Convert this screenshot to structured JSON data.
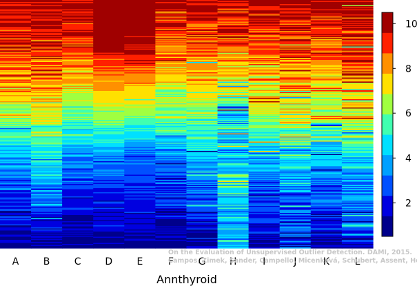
{
  "chart_data": {
    "type": "heatmap",
    "title": "",
    "xlabel": "Annthyroid",
    "ylabel": "",
    "categories": [
      "A",
      "B",
      "C",
      "D",
      "E",
      "F",
      "G",
      "H",
      "I",
      "J",
      "K",
      "L"
    ],
    "colorbar": {
      "range": [
        0.5,
        10.5
      ],
      "ticks": [
        2,
        4,
        6,
        8,
        10
      ],
      "levels": [
        "#00008b",
        "#0000e0",
        "#0050ff",
        "#00a0ff",
        "#00e0ff",
        "#40ffb0",
        "#a0ff40",
        "#ffe000",
        "#ff9000",
        "#ff2000",
        "#a00000"
      ]
    },
    "columns": [
      {
        "name": "A",
        "profile": [
          [
            0,
            10
          ],
          [
            0.12,
            9.5
          ],
          [
            0.3,
            8.5
          ],
          [
            0.45,
            6.5
          ],
          [
            0.6,
            4.5
          ],
          [
            0.75,
            3.0
          ],
          [
            0.88,
            2.0
          ],
          [
            1.0,
            1.0
          ]
        ],
        "noise": 2.0
      },
      {
        "name": "B",
        "profile": [
          [
            0,
            10
          ],
          [
            0.12,
            9.5
          ],
          [
            0.3,
            8.5
          ],
          [
            0.45,
            7.0
          ],
          [
            0.6,
            5.0
          ],
          [
            0.75,
            3.5
          ],
          [
            0.88,
            2.2
          ],
          [
            1.0,
            1.0
          ]
        ],
        "noise": 2.0
      },
      {
        "name": "C",
        "profile": [
          [
            0,
            10
          ],
          [
            0.15,
            9.5
          ],
          [
            0.3,
            8.0
          ],
          [
            0.45,
            6.0
          ],
          [
            0.6,
            4.0
          ],
          [
            0.75,
            2.5
          ],
          [
            0.9,
            1.5
          ],
          [
            1.0,
            1.0
          ]
        ],
        "noise": 1.6
      },
      {
        "name": "D",
        "profile": [
          [
            0,
            10.5
          ],
          [
            0.18,
            10
          ],
          [
            0.3,
            8.5
          ],
          [
            0.42,
            7.0
          ],
          [
            0.52,
            5.5
          ],
          [
            0.62,
            3.5
          ],
          [
            0.8,
            2.0
          ],
          [
            1.0,
            1.0
          ]
        ],
        "noise": 0.9
      },
      {
        "name": "E",
        "profile": [
          [
            0,
            10.5
          ],
          [
            0.18,
            10
          ],
          [
            0.3,
            8.5
          ],
          [
            0.42,
            6.8
          ],
          [
            0.52,
            5.0
          ],
          [
            0.62,
            3.2
          ],
          [
            0.8,
            2.0
          ],
          [
            1.0,
            1.0
          ]
        ],
        "noise": 0.9
      },
      {
        "name": "F",
        "profile": [
          [
            0,
            10
          ],
          [
            0.15,
            9.0
          ],
          [
            0.3,
            7.5
          ],
          [
            0.45,
            6.0
          ],
          [
            0.6,
            4.0
          ],
          [
            0.75,
            2.5
          ],
          [
            0.9,
            1.5
          ],
          [
            1.0,
            1.0
          ]
        ],
        "noise": 1.8
      },
      {
        "name": "G",
        "profile": [
          [
            0,
            10
          ],
          [
            0.15,
            9.0
          ],
          [
            0.3,
            8.0
          ],
          [
            0.45,
            6.0
          ],
          [
            0.6,
            4.5
          ],
          [
            0.75,
            3.0
          ],
          [
            0.9,
            2.0
          ],
          [
            1.0,
            1.0
          ]
        ],
        "noise": 2.0
      },
      {
        "name": "H",
        "profile": [
          [
            0,
            10
          ],
          [
            0.15,
            9.0
          ],
          [
            0.3,
            7.5
          ],
          [
            0.45,
            5.0
          ],
          [
            0.6,
            4.5
          ],
          [
            0.75,
            5.0
          ],
          [
            0.9,
            4.0
          ],
          [
            1.0,
            4.5
          ]
        ],
        "noise": 2.6
      },
      {
        "name": "I",
        "profile": [
          [
            0,
            10
          ],
          [
            0.15,
            9.0
          ],
          [
            0.3,
            8.0
          ],
          [
            0.45,
            6.5
          ],
          [
            0.6,
            4.5
          ],
          [
            0.75,
            3.0
          ],
          [
            0.9,
            2.0
          ],
          [
            1.0,
            1.0
          ]
        ],
        "noise": 2.0
      },
      {
        "name": "J",
        "profile": [
          [
            0,
            10
          ],
          [
            0.15,
            9.5
          ],
          [
            0.3,
            8.5
          ],
          [
            0.45,
            7.0
          ],
          [
            0.6,
            5.0
          ],
          [
            0.75,
            3.5
          ],
          [
            0.9,
            3.0
          ],
          [
            1.0,
            2.0
          ]
        ],
        "noise": 2.6
      },
      {
        "name": "K",
        "profile": [
          [
            0,
            10
          ],
          [
            0.15,
            9.0
          ],
          [
            0.3,
            8.0
          ],
          [
            0.45,
            6.5
          ],
          [
            0.6,
            4.5
          ],
          [
            0.75,
            3.0
          ],
          [
            0.9,
            2.0
          ],
          [
            1.0,
            1.0
          ]
        ],
        "noise": 2.2
      },
      {
        "name": "L",
        "profile": [
          [
            0,
            10
          ],
          [
            0.15,
            9.5
          ],
          [
            0.3,
            8.5
          ],
          [
            0.45,
            7.0
          ],
          [
            0.6,
            5.0
          ],
          [
            0.75,
            3.5
          ],
          [
            0.9,
            2.5
          ],
          [
            1.0,
            1.5
          ]
        ],
        "noise": 2.4
      }
    ]
  },
  "watermark": {
    "line1": "On the Evaluation of Unsupervised Outlier Detection. DAMI, 2015.",
    "line2": "Campos, Zimek, Sander, Campello, Micenková, Schubert, Assent, Houle"
  }
}
